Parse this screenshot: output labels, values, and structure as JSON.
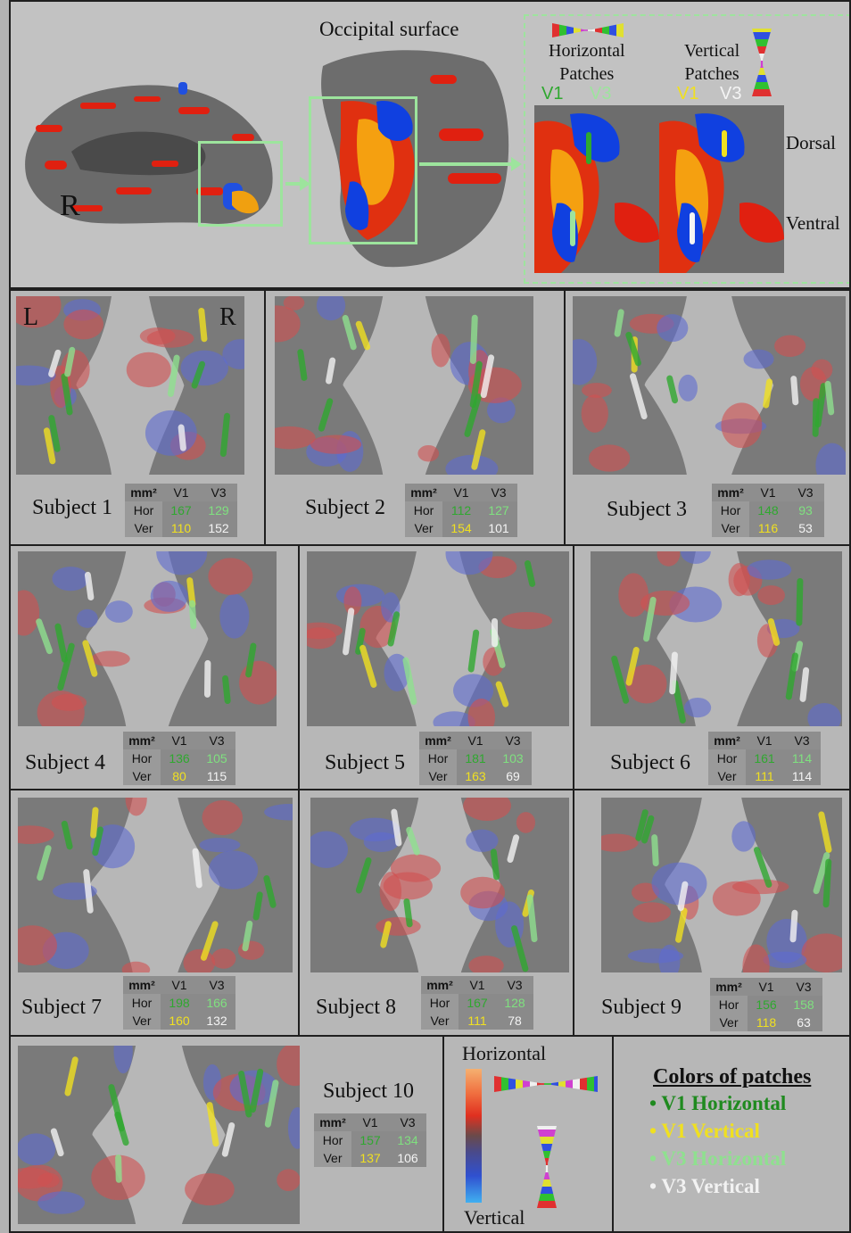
{
  "top": {
    "occipital_label": "Occipital surface",
    "hemisphere_label": "R",
    "horizontal_patches": "Horizontal\nPatches",
    "vertical_patches": "Vertical\nPatches",
    "hor_v1": "V1",
    "hor_v3": "V3",
    "ver_v1": "V1",
    "ver_v3": "V3",
    "dorsal": "Dorsal",
    "ventral": "Ventral"
  },
  "hemi_labels": {
    "left": "L",
    "right": "R"
  },
  "table_headers": {
    "unit": "mm²",
    "v1": "V1",
    "v3": "V3",
    "hor": "Hor",
    "ver": "Ver"
  },
  "subjects": [
    {
      "label": "Subject 1",
      "hor_v1": "167",
      "hor_v3": "129",
      "ver_v1": "110",
      "ver_v3": "152"
    },
    {
      "label": "Subject 2",
      "hor_v1": "112",
      "hor_v3": "127",
      "ver_v1": "154",
      "ver_v3": "101"
    },
    {
      "label": "Subject 3",
      "hor_v1": "148",
      "hor_v3": "93",
      "ver_v1": "116",
      "ver_v3": "53"
    },
    {
      "label": "Subject 4",
      "hor_v1": "136",
      "hor_v3": "105",
      "ver_v1": "80",
      "ver_v3": "115"
    },
    {
      "label": "Subject 5",
      "hor_v1": "181",
      "hor_v3": "103",
      "ver_v1": "163",
      "ver_v3": "69"
    },
    {
      "label": "Subject 6",
      "hor_v1": "161",
      "hor_v3": "114",
      "ver_v1": "111",
      "ver_v3": "114"
    },
    {
      "label": "Subject 7",
      "hor_v1": "198",
      "hor_v3": "166",
      "ver_v1": "160",
      "ver_v3": "132"
    },
    {
      "label": "Subject 8",
      "hor_v1": "167",
      "hor_v3": "128",
      "ver_v1": "111",
      "ver_v3": "78"
    },
    {
      "label": "Subject 9",
      "hor_v1": "156",
      "hor_v3": "158",
      "ver_v1": "118",
      "ver_v3": "63"
    },
    {
      "label": "Subject 10",
      "hor_v1": "157",
      "hor_v3": "134",
      "ver_v1": "137",
      "ver_v3": "106"
    }
  ],
  "colorbar": {
    "top_label": "Horizontal",
    "bottom_label": "Vertical"
  },
  "legend": {
    "title": "Colors of patches",
    "items": [
      {
        "label": "V1 Horizontal",
        "color": "#1f8a1f"
      },
      {
        "label": "V1 Vertical",
        "color": "#f0e020"
      },
      {
        "label": "V3 Horizontal",
        "color": "#8fe08f"
      },
      {
        "label": "V3 Vertical",
        "color": "#f2f2f2"
      }
    ]
  },
  "colors": {
    "v1_horizontal": "#2fa82f",
    "v3_horizontal": "#7fe07f",
    "v1_vertical": "#f0e020",
    "v3_vertical": "#f4f4f4"
  }
}
